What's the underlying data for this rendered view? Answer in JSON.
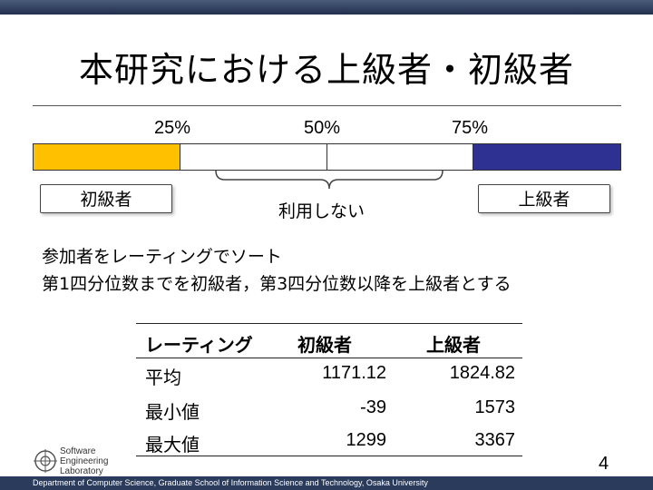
{
  "title": "本研究における上級者・初級者",
  "scale": {
    "p25": "25%",
    "p50": "50%",
    "p75": "75%"
  },
  "bar_colors": {
    "beginner": "#ffc000",
    "middle": "#ffffff",
    "expert": "#2e3192"
  },
  "labels": {
    "beginner": "初級者",
    "expert": "上級者",
    "unused": "利用しない"
  },
  "body": {
    "line1": "参加者をレーティングでソート",
    "line2": "第1四分位数までを初級者，第3四分位数以降を上級者とする"
  },
  "table": {
    "headers": [
      "レーティング",
      "初級者",
      "上級者"
    ],
    "rows": [
      {
        "label": "平均",
        "beginner": "1171.12",
        "expert": "1824.82"
      },
      {
        "label": "最小値",
        "beginner": "-39",
        "expert": "1573"
      },
      {
        "label": "最大値",
        "beginner": "1299",
        "expert": "3367"
      }
    ]
  },
  "logo": {
    "line1": "Software",
    "line2": "Engineering",
    "line3": "Laboratory"
  },
  "page_number": "4",
  "footer": "Department of Computer Science, Graduate School of Information Science and Technology, Osaka University"
}
